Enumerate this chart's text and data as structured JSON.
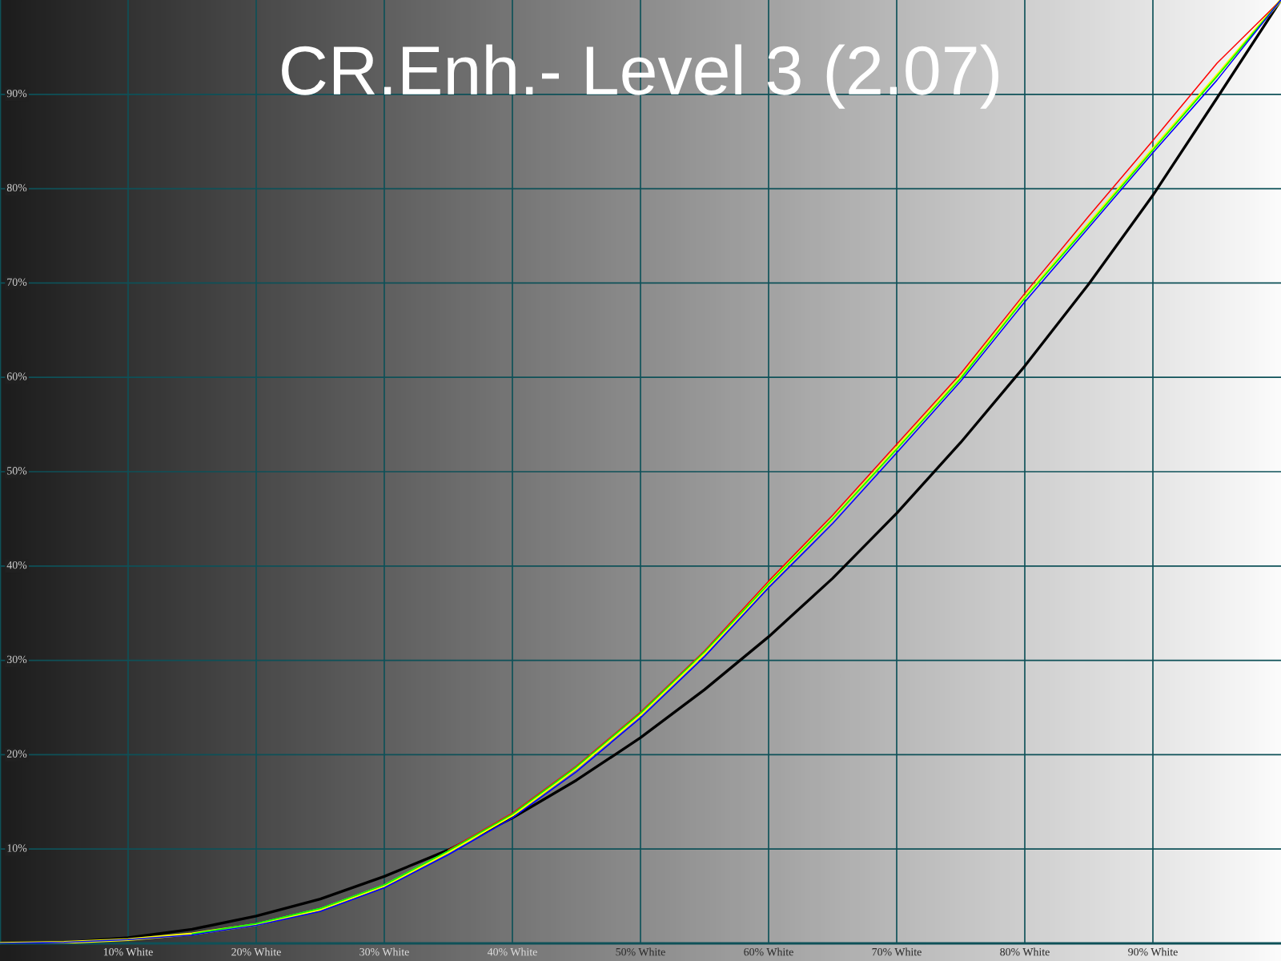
{
  "chart_data": {
    "type": "line",
    "title": "CR.Enh.- Level 3 (2.07)",
    "x": [
      0,
      5,
      10,
      15,
      20,
      25,
      30,
      35,
      40,
      45,
      50,
      55,
      60,
      65,
      70,
      75,
      80,
      85,
      90,
      95,
      100
    ],
    "series": [
      {
        "color": "#000000",
        "values": [
          0,
          0.1,
          0.6,
          1.5,
          2.9,
          4.7,
          7.1,
          9.9,
          13.3,
          17.3,
          21.8,
          26.9,
          32.5,
          38.7,
          45.6,
          53.1,
          61.2,
          69.9,
          79.3,
          89.6,
          100
        ]
      },
      {
        "color": "#ffff00",
        "values": [
          0,
          0.1,
          0.4,
          1.0,
          2.0,
          3.6,
          6.1,
          9.7,
          13.6,
          18.6,
          24.3,
          30.8,
          38.1,
          45.0,
          52.5,
          60.0,
          68.5,
          76.3,
          84.2,
          92.0,
          100
        ]
      },
      {
        "color": "#ff0000",
        "values": [
          null,
          null,
          null,
          null,
          null,
          null,
          null,
          9.9,
          13.8,
          18.8,
          24.5,
          31.0,
          38.4,
          45.4,
          52.9,
          60.4,
          68.9,
          77.1,
          85.1,
          93.3,
          100
        ]
      },
      {
        "color": "#00ff00",
        "values": [
          null,
          null,
          null,
          1.0,
          2.1,
          3.7,
          6.2,
          9.8,
          13.7,
          18.7,
          24.4,
          30.9,
          38.1,
          45.0,
          52.4,
          59.9,
          68.4,
          76.2,
          84.1,
          91.9,
          100
        ]
      },
      {
        "color": "#0000ff",
        "values": [
          0,
          0.1,
          0.4,
          0.9,
          1.9,
          3.4,
          5.9,
          9.4,
          13.3,
          18.2,
          23.9,
          30.4,
          37.7,
          44.5,
          52.0,
          59.6,
          68.0,
          75.9,
          83.8,
          91.5,
          100
        ]
      }
    ],
    "xlim": [
      0,
      100
    ],
    "ylim": [
      0,
      100
    ],
    "xticks": [
      {
        "value": 10,
        "label": "10% White"
      },
      {
        "value": 20,
        "label": "20% White"
      },
      {
        "value": 30,
        "label": "30% White"
      },
      {
        "value": 40,
        "label": "40% White"
      },
      {
        "value": 50,
        "label": "50% White"
      },
      {
        "value": 60,
        "label": "60% White"
      },
      {
        "value": 70,
        "label": "70% White"
      },
      {
        "value": 80,
        "label": "80% White"
      },
      {
        "value": 90,
        "label": "90% White"
      }
    ],
    "yticks": [
      {
        "value": 10,
        "label": "10%"
      },
      {
        "value": 20,
        "label": "20%"
      },
      {
        "value": 30,
        "label": "30%"
      },
      {
        "value": 40,
        "label": "40%"
      },
      {
        "value": 50,
        "label": "50%"
      },
      {
        "value": 60,
        "label": "60%"
      },
      {
        "value": 70,
        "label": "70%"
      },
      {
        "value": 80,
        "label": "80%"
      },
      {
        "value": 90,
        "label": "90%"
      }
    ],
    "grid": true
  }
}
